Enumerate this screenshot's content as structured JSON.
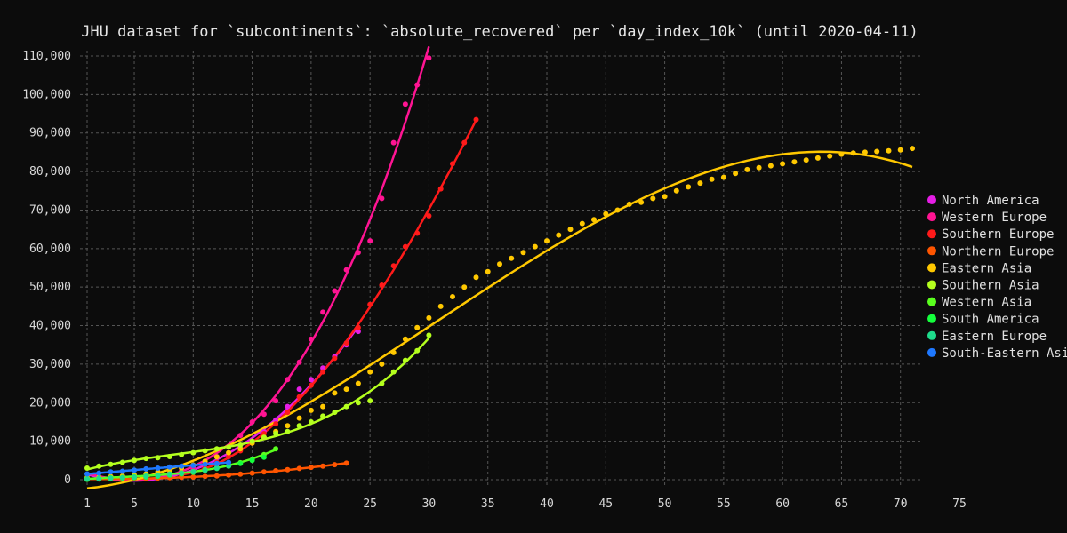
{
  "chart_data": {
    "type": "scatter",
    "title": "JHU dataset for `subcontinents`: `absolute_recovered` per `day_index_10k` (until 2020-04-11)",
    "xlabel": "",
    "ylabel": "",
    "xlim": [
      1,
      75
    ],
    "ylim": [
      0,
      110000
    ],
    "x_ticks": [
      "1",
      "5",
      "10",
      "15",
      "20",
      "25",
      "30",
      "35",
      "40",
      "45",
      "50",
      "55",
      "60",
      "65",
      "70",
      "75"
    ],
    "y_ticks": [
      "0",
      "10,000",
      "20,000",
      "30,000",
      "40,000",
      "50,000",
      "60,000",
      "70,000",
      "80,000",
      "90,000",
      "100,000",
      "110,000"
    ],
    "grid": true,
    "legend_position": "right",
    "series": [
      {
        "name": "North America",
        "color": "#e61ee6",
        "markers": true,
        "fit": true,
        "x": [
          1,
          2,
          3,
          4,
          5,
          6,
          7,
          8,
          9,
          10,
          11,
          12,
          13,
          14,
          15,
          16,
          17,
          18,
          19,
          20,
          21,
          22,
          23,
          24
        ],
        "y": [
          200,
          300,
          400,
          500,
          600,
          800,
          1000,
          1300,
          1700,
          2200,
          3000,
          4000,
          6000,
          8000,
          10000,
          12500,
          15500,
          19000,
          23500,
          26000,
          29000,
          32000,
          35000,
          38500
        ]
      },
      {
        "name": "Western Europe",
        "color": "#ff1493",
        "markers": true,
        "fit": true,
        "x": [
          1,
          2,
          3,
          4,
          5,
          6,
          7,
          8,
          9,
          10,
          11,
          12,
          13,
          14,
          15,
          16,
          17,
          18,
          19,
          20,
          21,
          22,
          23,
          24,
          25,
          26,
          27,
          28,
          29,
          30
        ],
        "y": [
          400,
          500,
          600,
          700,
          900,
          1000,
          1300,
          1700,
          2200,
          3000,
          4500,
          6000,
          8500,
          11500,
          15000,
          17000,
          20500,
          26000,
          30500,
          36500,
          43500,
          49000,
          54500,
          59000,
          62000,
          73000,
          87500,
          97500,
          102500,
          109500
        ]
      },
      {
        "name": "Southern Europe",
        "color": "#ff1a1a",
        "markers": true,
        "fit": true,
        "x": [
          9,
          10,
          11,
          12,
          13,
          14,
          15,
          16,
          17,
          18,
          19,
          20,
          21,
          22,
          23,
          24,
          25,
          26,
          27,
          28,
          29,
          30,
          31,
          32,
          33,
          34
        ],
        "y": [
          1000,
          2000,
          3000,
          4500,
          6000,
          7500,
          9500,
          12000,
          14500,
          17500,
          21500,
          24500,
          28000,
          31500,
          35500,
          39500,
          45500,
          50500,
          55500,
          60500,
          64000,
          68500,
          75500,
          82000,
          87500,
          93500
        ]
      },
      {
        "name": "Northern Europe",
        "color": "#ff5500",
        "markers": true,
        "fit": true,
        "x": [
          1,
          2,
          3,
          4,
          5,
          6,
          7,
          8,
          9,
          10,
          11,
          12,
          13,
          14,
          15,
          16,
          17,
          18,
          19,
          20,
          21,
          22,
          23
        ],
        "y": [
          100,
          150,
          200,
          250,
          300,
          350,
          400,
          500,
          600,
          700,
          850,
          1000,
          1200,
          1450,
          1700,
          2000,
          2300,
          2600,
          2900,
          3200,
          3500,
          3900,
          4300
        ]
      },
      {
        "name": "Eastern Asia",
        "color": "#ffc800",
        "markers": true,
        "fit": true,
        "x": [
          1,
          2,
          3,
          4,
          5,
          6,
          7,
          8,
          9,
          10,
          11,
          12,
          13,
          14,
          15,
          16,
          17,
          18,
          19,
          20,
          21,
          22,
          23,
          24,
          25,
          26,
          27,
          28,
          29,
          30,
          31,
          32,
          33,
          34,
          35,
          36,
          37,
          38,
          39,
          40,
          41,
          42,
          43,
          44,
          45,
          46,
          47,
          48,
          49,
          50,
          51,
          52,
          53,
          54,
          55,
          56,
          57,
          58,
          59,
          60,
          61,
          62,
          63,
          64,
          65,
          66,
          67,
          68,
          69,
          70,
          71
        ],
        "y": [
          500,
          600,
          800,
          1000,
          1200,
          1500,
          2000,
          2500,
          3000,
          3800,
          4800,
          5900,
          7000,
          8000,
          9500,
          11000,
          12500,
          14000,
          16000,
          18000,
          19000,
          22500,
          23500,
          25000,
          28000,
          30000,
          33000,
          36500,
          39500,
          42000,
          45000,
          47500,
          50000,
          52500,
          54000,
          56000,
          57500,
          59000,
          60500,
          62000,
          63500,
          65000,
          66500,
          67500,
          69000,
          70000,
          71500,
          72000,
          73000,
          73500,
          75000,
          76000,
          77000,
          78000,
          78500,
          79500,
          80500,
          81000,
          81500,
          82000,
          82500,
          83000,
          83500,
          84000,
          84500,
          84800,
          85000,
          85200,
          85400,
          85600,
          86000
        ]
      },
      {
        "name": "Southern Asia",
        "color": "#b4ff1e",
        "markers": true,
        "fit": true,
        "x": [
          1,
          2,
          3,
          4,
          5,
          6,
          7,
          8,
          9,
          10,
          11,
          12,
          13,
          14,
          15,
          16,
          17,
          18,
          19,
          20,
          21,
          22,
          23,
          24,
          25,
          26,
          27,
          28,
          29,
          30
        ],
        "y": [
          3000,
          3500,
          4000,
          4500,
          5000,
          5500,
          5700,
          6000,
          6500,
          7000,
          7500,
          8000,
          8500,
          9000,
          10000,
          11000,
          12000,
          12500,
          14000,
          15000,
          16500,
          17500,
          19000,
          20000,
          20500,
          25000,
          28000,
          31000,
          33500,
          37500
        ]
      },
      {
        "name": "Western Asia",
        "color": "#5aff1e",
        "markers": true,
        "fit": true,
        "x": [
          1,
          2,
          3,
          4,
          5,
          6,
          7,
          8,
          9,
          10,
          11,
          12,
          13,
          14,
          15,
          16,
          17
        ],
        "y": [
          300,
          400,
          500,
          600,
          800,
          1000,
          1200,
          1500,
          1800,
          2100,
          2600,
          3100,
          3700,
          4400,
          5200,
          6500,
          8000
        ]
      },
      {
        "name": "South America",
        "color": "#14ff3c",
        "markers": true,
        "fit": false,
        "x": [
          1,
          2,
          3,
          4,
          5,
          6,
          7,
          8,
          9,
          10,
          11,
          12,
          13,
          14,
          15,
          16
        ],
        "y": [
          100,
          200,
          300,
          400,
          500,
          700,
          900,
          1200,
          1500,
          1900,
          2400,
          2900,
          3500,
          4200,
          5000,
          5800
        ]
      },
      {
        "name": "Eastern Europe",
        "color": "#1edc8c",
        "markers": true,
        "fit": false,
        "x": [
          1,
          2,
          3,
          4,
          5,
          6,
          7,
          8,
          9,
          10,
          11,
          12,
          13
        ],
        "y": [
          200,
          300,
          400,
          500,
          700,
          900,
          1100,
          1400,
          1700,
          2100,
          2500,
          3000,
          3600
        ]
      },
      {
        "name": "South-Eastern Asia",
        "color": "#1e78ff",
        "markers": true,
        "fit": true,
        "x": [
          1,
          2,
          3,
          4,
          5,
          6,
          7,
          8,
          9,
          10,
          11,
          12,
          13
        ],
        "y": [
          1500,
          1700,
          2000,
          2200,
          2500,
          2800,
          3000,
          3300,
          3500,
          3700,
          4000,
          4200,
          4500
        ]
      }
    ]
  }
}
